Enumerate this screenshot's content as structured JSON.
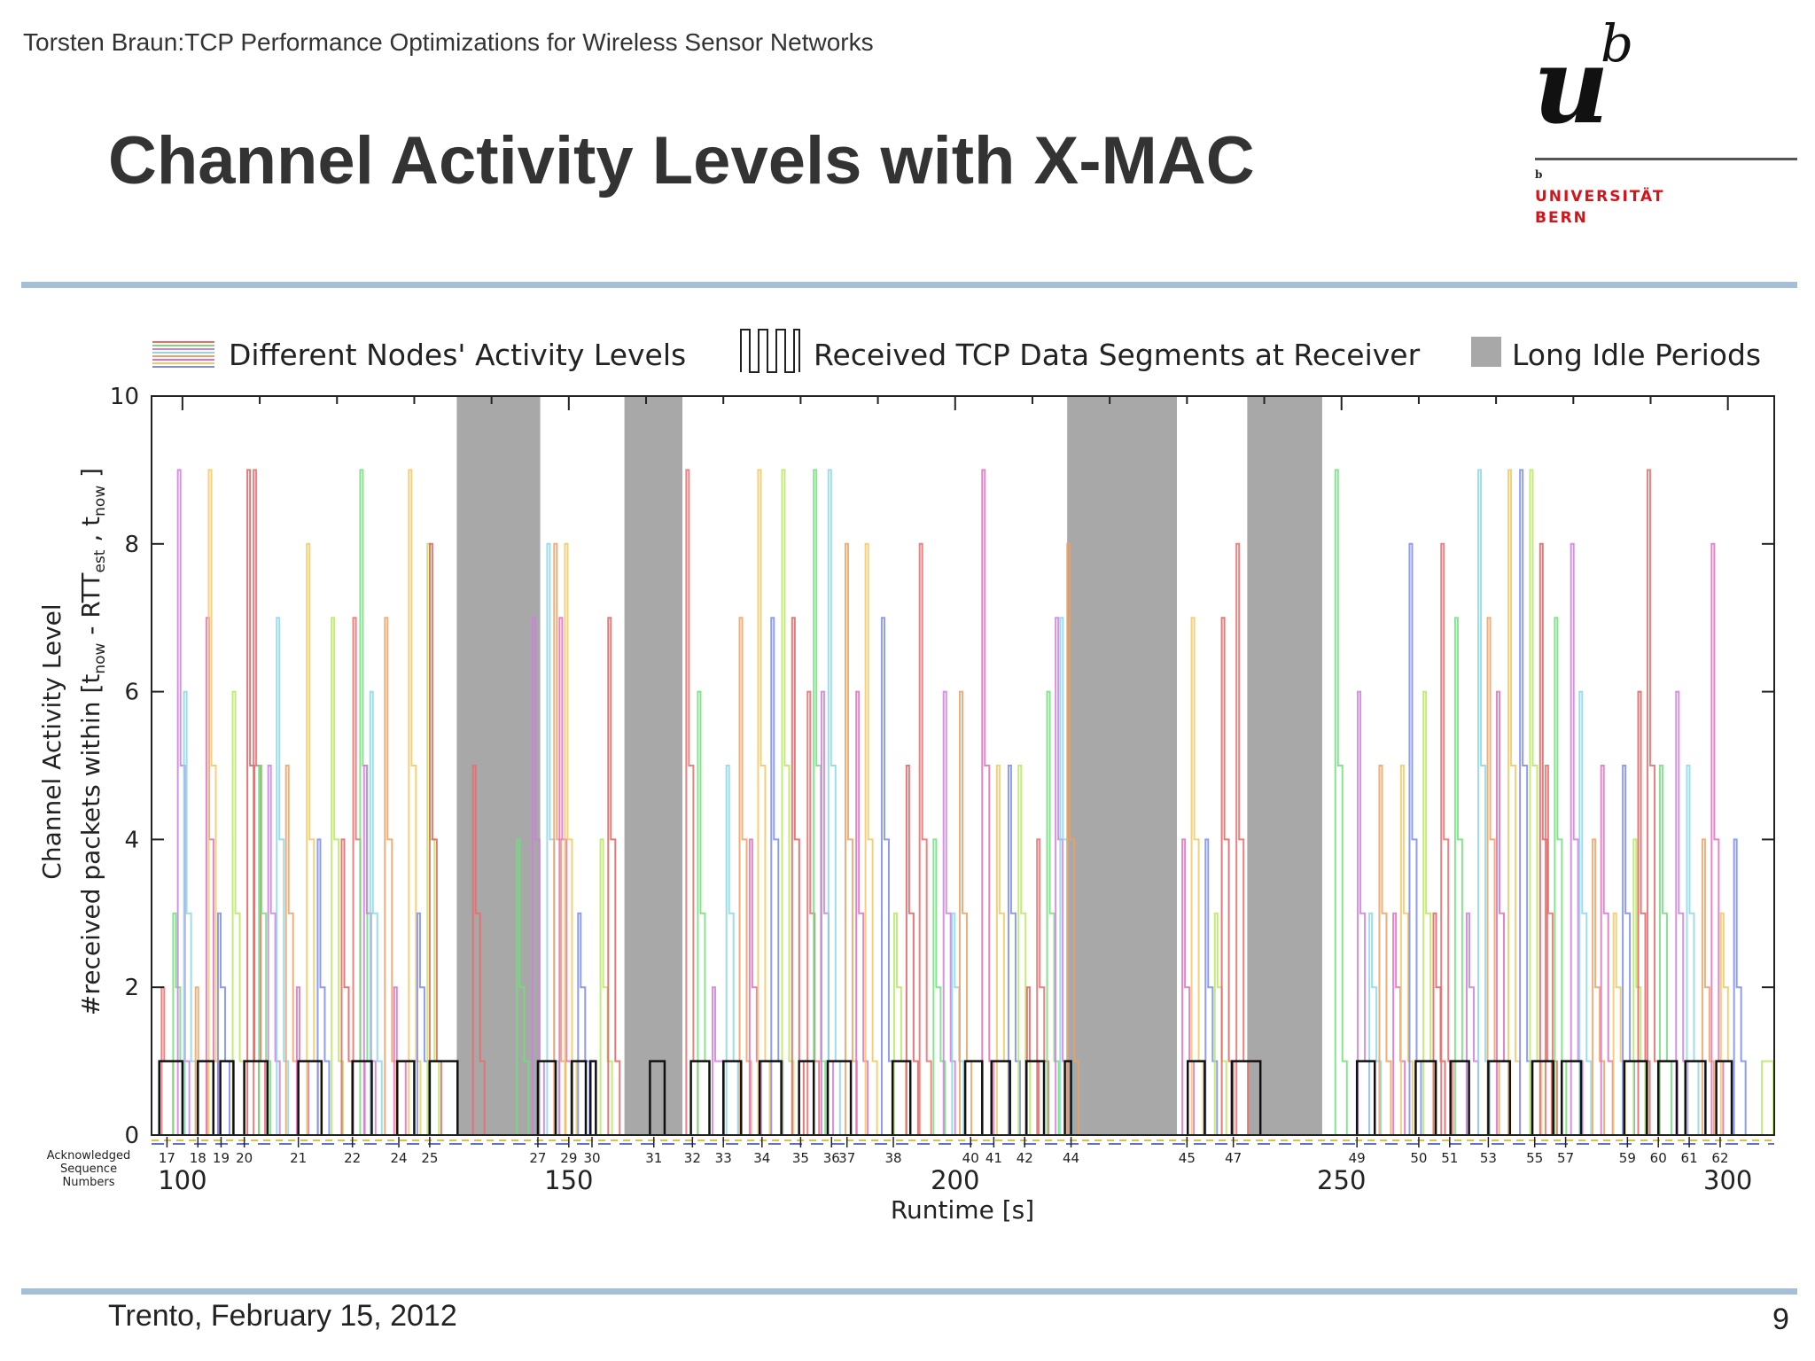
{
  "header": {
    "running_title": "Torsten Braun:TCP Performance Optimizations for Wireless Sensor Networks",
    "slide_title": "Channel Activity Levels with X-MAC"
  },
  "logo": {
    "u": "u",
    "b": "b",
    "small_b": "b",
    "line1": "UNIVERSITÄT",
    "line2": "BERN"
  },
  "footer": {
    "date": "Trento, February 15, 2012",
    "page": "9"
  },
  "chart_data": {
    "type": "bar",
    "xlabel": "Runtime [s]",
    "ylabel_line1": "Channel Activity Level",
    "ylabel_line2": "#received packets within [t",
    "ylabel_now": "now",
    "ylabel_minus": " - RTT",
    "ylabel_est": "est",
    "ylabel_comma": " , t",
    "ylabel_close": " ]",
    "xlim": [
      96,
      306
    ],
    "ylim": [
      0,
      10
    ],
    "x_ticks": [
      100,
      150,
      200,
      250,
      300
    ],
    "y_ticks": [
      0,
      2,
      4,
      6,
      8,
      10
    ],
    "grid": false,
    "legend_position": "top",
    "legend": [
      {
        "label": "Different Nodes' Activity Levels",
        "swatch": "multi-line"
      },
      {
        "label": "Received TCP Data Segments at Receiver",
        "swatch": "pulse"
      },
      {
        "label": "Long Idle Periods",
        "swatch": "box"
      }
    ],
    "ack_label": [
      "Acknowledged",
      "Sequence",
      "Numbers"
    ],
    "sequence_numbers": [
      {
        "x": 98,
        "label": "17"
      },
      {
        "x": 102,
        "label": "18"
      },
      {
        "x": 105,
        "label": "19"
      },
      {
        "x": 108,
        "label": "20"
      },
      {
        "x": 115,
        "label": "21"
      },
      {
        "x": 122,
        "label": "22"
      },
      {
        "x": 128,
        "label": "24"
      },
      {
        "x": 132,
        "label": "25"
      },
      {
        "x": 146,
        "label": "27"
      },
      {
        "x": 150,
        "label": "29"
      },
      {
        "x": 153,
        "label": "30"
      },
      {
        "x": 161,
        "label": "31"
      },
      {
        "x": 166,
        "label": "32"
      },
      {
        "x": 170,
        "label": "33"
      },
      {
        "x": 175,
        "label": "34"
      },
      {
        "x": 180,
        "label": "35"
      },
      {
        "x": 184,
        "label": "36"
      },
      {
        "x": 186,
        "label": "37"
      },
      {
        "x": 192,
        "label": "38"
      },
      {
        "x": 202,
        "label": "40"
      },
      {
        "x": 205,
        "label": "41"
      },
      {
        "x": 209,
        "label": "42"
      },
      {
        "x": 215,
        "label": "44"
      },
      {
        "x": 230,
        "label": "45"
      },
      {
        "x": 236,
        "label": "47"
      },
      {
        "x": 252,
        "label": "49"
      },
      {
        "x": 260,
        "label": "50"
      },
      {
        "x": 264,
        "label": "51"
      },
      {
        "x": 269,
        "label": "53"
      },
      {
        "x": 275,
        "label": "55"
      },
      {
        "x": 279,
        "label": "57"
      },
      {
        "x": 287,
        "label": "59"
      },
      {
        "x": 291,
        "label": "60"
      },
      {
        "x": 295,
        "label": "61"
      },
      {
        "x": 299,
        "label": "62"
      }
    ],
    "idle_periods": [
      [
        135.5,
        146.3
      ],
      [
        157.2,
        164.7
      ],
      [
        214.5,
        228.7
      ],
      [
        237.8,
        247.5
      ]
    ],
    "received_segments": [
      [
        97,
        100
      ],
      [
        102,
        104
      ],
      [
        104.9,
        106.6
      ],
      [
        108,
        111
      ],
      [
        115,
        118
      ],
      [
        122,
        124.5
      ],
      [
        127.8,
        130
      ],
      [
        132,
        135.6
      ],
      [
        146,
        148.3
      ],
      [
        150.4,
        152.2
      ],
      [
        152.8,
        153.5
      ],
      [
        160.5,
        162.4
      ],
      [
        165.8,
        168.2
      ],
      [
        170,
        172.3
      ],
      [
        174.7,
        177.5
      ],
      [
        179.8,
        181.7
      ],
      [
        183.5,
        186.5
      ],
      [
        191.9,
        194.2
      ],
      [
        201.3,
        203.5
      ],
      [
        204.7,
        207.1
      ],
      [
        209.2,
        211.5
      ],
      [
        214.2,
        215
      ],
      [
        230.1,
        232.3
      ],
      [
        235.8,
        239.5
      ],
      [
        252,
        254.3
      ],
      [
        259.6,
        262.2
      ],
      [
        264.1,
        266.5
      ],
      [
        269,
        271.8
      ],
      [
        274.7,
        277.4
      ],
      [
        278.5,
        281
      ],
      [
        286.6,
        289.5
      ],
      [
        291,
        293.4
      ],
      [
        294.5,
        297.1
      ],
      [
        298.5,
        300.5
      ]
    ],
    "activity_levels": [
      {
        "x": 97.3,
        "level": 2
      },
      {
        "x": 98.8,
        "level": 3
      },
      {
        "x": 99.4,
        "level": 9
      },
      {
        "x": 100.2,
        "level": 6
      },
      {
        "x": 101.7,
        "level": 2
      },
      {
        "x": 103.1,
        "level": 7
      },
      {
        "x": 103.4,
        "level": 9
      },
      {
        "x": 104.6,
        "level": 3
      },
      {
        "x": 106.5,
        "level": 6
      },
      {
        "x": 108.4,
        "level": 9
      },
      {
        "x": 109.2,
        "level": 9
      },
      {
        "x": 109.9,
        "level": 5
      },
      {
        "x": 111.1,
        "level": 5
      },
      {
        "x": 112.2,
        "level": 7
      },
      {
        "x": 113.4,
        "level": 5
      },
      {
        "x": 114.8,
        "level": 2
      },
      {
        "x": 116.1,
        "level": 8
      },
      {
        "x": 117.5,
        "level": 4
      },
      {
        "x": 119.3,
        "level": 7
      },
      {
        "x": 120.6,
        "level": 4
      },
      {
        "x": 122.1,
        "level": 7
      },
      {
        "x": 123.0,
        "level": 9
      },
      {
        "x": 123.5,
        "level": 5
      },
      {
        "x": 124.3,
        "level": 6
      },
      {
        "x": 126.2,
        "level": 7
      },
      {
        "x": 127.4,
        "level": 2
      },
      {
        "x": 129.3,
        "level": 9
      },
      {
        "x": 130.4,
        "level": 3
      },
      {
        "x": 131.7,
        "level": 8
      },
      {
        "x": 132.0,
        "level": 8
      },
      {
        "x": 137.6,
        "level": 5
      },
      {
        "x": 143.3,
        "level": 4
      },
      {
        "x": 145.3,
        "level": 7
      },
      {
        "x": 147.2,
        "level": 8
      },
      {
        "x": 148.1,
        "level": 8
      },
      {
        "x": 148.8,
        "level": 7
      },
      {
        "x": 149.5,
        "level": 8
      },
      {
        "x": 151.2,
        "level": 3
      },
      {
        "x": 154.1,
        "level": 4
      },
      {
        "x": 155.1,
        "level": 7
      },
      {
        "x": 165.2,
        "level": 9
      },
      {
        "x": 166.7,
        "level": 6
      },
      {
        "x": 168.6,
        "level": 2
      },
      {
        "x": 170.4,
        "level": 5
      },
      {
        "x": 172.1,
        "level": 7
      },
      {
        "x": 173.4,
        "level": 4
      },
      {
        "x": 174.5,
        "level": 9
      },
      {
        "x": 176.2,
        "level": 7
      },
      {
        "x": 177.6,
        "level": 9
      },
      {
        "x": 178.9,
        "level": 7
      },
      {
        "x": 180.9,
        "level": 6
      },
      {
        "x": 181.7,
        "level": 9
      },
      {
        "x": 182.7,
        "level": 6
      },
      {
        "x": 183.6,
        "level": 9
      },
      {
        "x": 185.8,
        "level": 8
      },
      {
        "x": 187.2,
        "level": 6
      },
      {
        "x": 188.4,
        "level": 8
      },
      {
        "x": 190.5,
        "level": 7
      },
      {
        "x": 192.1,
        "level": 3
      },
      {
        "x": 193.7,
        "level": 5
      },
      {
        "x": 195.4,
        "level": 8
      },
      {
        "x": 197.2,
        "level": 4
      },
      {
        "x": 198.5,
        "level": 6
      },
      {
        "x": 199.6,
        "level": 3
      },
      {
        "x": 200.6,
        "level": 6
      },
      {
        "x": 203.5,
        "level": 9
      },
      {
        "x": 205.4,
        "level": 5
      },
      {
        "x": 206.9,
        "level": 5
      },
      {
        "x": 208.2,
        "level": 5
      },
      {
        "x": 209.3,
        "level": 2
      },
      {
        "x": 210.6,
        "level": 4
      },
      {
        "x": 211.9,
        "level": 6
      },
      {
        "x": 213.0,
        "level": 7
      },
      {
        "x": 213.6,
        "level": 7
      },
      {
        "x": 214.5,
        "level": 8
      },
      {
        "x": 229.4,
        "level": 4
      },
      {
        "x": 230.6,
        "level": 7
      },
      {
        "x": 232.4,
        "level": 4
      },
      {
        "x": 233.6,
        "level": 3
      },
      {
        "x": 234.5,
        "level": 7
      },
      {
        "x": 236.4,
        "level": 8
      },
      {
        "x": 249.2,
        "level": 9
      },
      {
        "x": 252.1,
        "level": 6
      },
      {
        "x": 253.6,
        "level": 3
      },
      {
        "x": 254.9,
        "level": 5
      },
      {
        "x": 256.7,
        "level": 3
      },
      {
        "x": 257.7,
        "level": 5
      },
      {
        "x": 258.8,
        "level": 8
      },
      {
        "x": 260.6,
        "level": 6
      },
      {
        "x": 261.9,
        "level": 3
      },
      {
        "x": 262.9,
        "level": 8
      },
      {
        "x": 264.7,
        "level": 7
      },
      {
        "x": 266.2,
        "level": 3
      },
      {
        "x": 267.7,
        "level": 9
      },
      {
        "x": 268.9,
        "level": 7
      },
      {
        "x": 270.1,
        "level": 6
      },
      {
        "x": 271.6,
        "level": 9
      },
      {
        "x": 273.1,
        "level": 9
      },
      {
        "x": 274.4,
        "level": 9
      },
      {
        "x": 275.7,
        "level": 8
      },
      {
        "x": 276.4,
        "level": 5
      },
      {
        "x": 277.6,
        "level": 7
      },
      {
        "x": 279.7,
        "level": 8
      },
      {
        "x": 280.8,
        "level": 6
      },
      {
        "x": 282.5,
        "level": 4
      },
      {
        "x": 283.6,
        "level": 5
      },
      {
        "x": 285.2,
        "level": 3
      },
      {
        "x": 286.4,
        "level": 5
      },
      {
        "x": 287.8,
        "level": 4
      },
      {
        "x": 288.4,
        "level": 6
      },
      {
        "x": 289.6,
        "level": 9
      },
      {
        "x": 291.2,
        "level": 5
      },
      {
        "x": 293.3,
        "level": 6
      },
      {
        "x": 294.7,
        "level": 5
      },
      {
        "x": 296.7,
        "level": 4
      },
      {
        "x": 297.9,
        "level": 8
      },
      {
        "x": 299.1,
        "level": 3
      },
      {
        "x": 300.8,
        "level": 4
      },
      {
        "x": 304.4,
        "level": 1
      }
    ],
    "palette": [
      "#ee6a6a",
      "#6ee07a",
      "#cf7ee0",
      "#8ad8e8",
      "#f0a060",
      "#e070c0",
      "#f2c860",
      "#7a8cf0",
      "#b8e860",
      "#e06060"
    ]
  }
}
